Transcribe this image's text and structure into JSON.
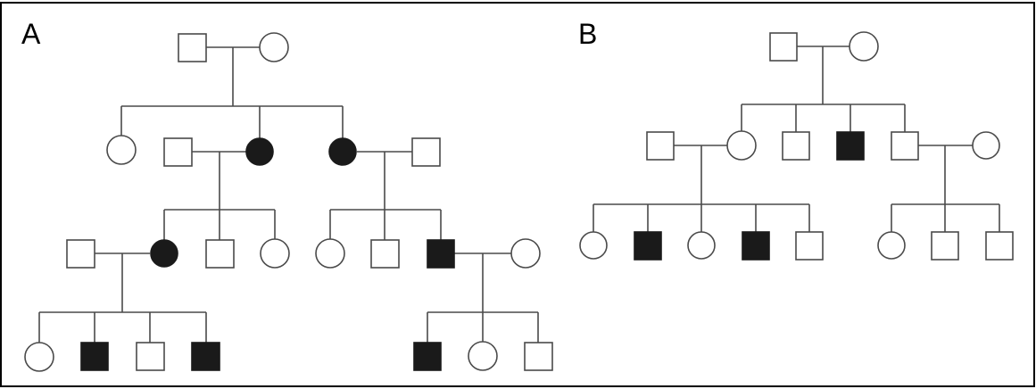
{
  "figure": {
    "panels": [
      {
        "label": "A",
        "generations": [
          [
            {
              "id": "A-I-1",
              "sex": "male",
              "affected": false
            },
            {
              "id": "A-I-2",
              "sex": "female",
              "affected": false
            }
          ],
          [
            {
              "id": "A-II-1",
              "sex": "female",
              "affected": false
            },
            {
              "id": "A-II-2",
              "sex": "male",
              "affected": false,
              "spouse": true
            },
            {
              "id": "A-II-3",
              "sex": "female",
              "affected": true
            },
            {
              "id": "A-II-4",
              "sex": "female",
              "affected": true
            },
            {
              "id": "A-II-5",
              "sex": "male",
              "affected": false,
              "spouse": true
            }
          ],
          [
            {
              "id": "A-III-1",
              "sex": "male",
              "affected": false,
              "spouse": true
            },
            {
              "id": "A-III-2",
              "sex": "female",
              "affected": true
            },
            {
              "id": "A-III-3",
              "sex": "male",
              "affected": false
            },
            {
              "id": "A-III-4",
              "sex": "female",
              "affected": false
            },
            {
              "id": "A-III-5",
              "sex": "female",
              "affected": false
            },
            {
              "id": "A-III-6",
              "sex": "male",
              "affected": false
            },
            {
              "id": "A-III-7",
              "sex": "male",
              "affected": true
            },
            {
              "id": "A-III-8",
              "sex": "female",
              "affected": false,
              "spouse": true
            }
          ],
          [
            {
              "id": "A-IV-1",
              "sex": "female",
              "affected": false
            },
            {
              "id": "A-IV-2",
              "sex": "male",
              "affected": true
            },
            {
              "id": "A-IV-3",
              "sex": "male",
              "affected": false
            },
            {
              "id": "A-IV-4",
              "sex": "male",
              "affected": true
            },
            {
              "id": "A-IV-5",
              "sex": "male",
              "affected": true
            },
            {
              "id": "A-IV-6",
              "sex": "female",
              "affected": false
            },
            {
              "id": "A-IV-7",
              "sex": "male",
              "affected": false
            }
          ]
        ]
      },
      {
        "label": "B",
        "generations": [
          [
            {
              "id": "B-I-1",
              "sex": "male",
              "affected": false
            },
            {
              "id": "B-I-2",
              "sex": "female",
              "affected": false
            }
          ],
          [
            {
              "id": "B-II-1",
              "sex": "male",
              "affected": false,
              "spouse": true
            },
            {
              "id": "B-II-2",
              "sex": "female",
              "affected": false
            },
            {
              "id": "B-II-3",
              "sex": "male",
              "affected": false
            },
            {
              "id": "B-II-4",
              "sex": "male",
              "affected": true
            },
            {
              "id": "B-II-5",
              "sex": "male",
              "affected": false
            },
            {
              "id": "B-II-6",
              "sex": "female",
              "affected": false,
              "spouse": true
            }
          ],
          [
            {
              "id": "B-III-1",
              "sex": "female",
              "affected": false
            },
            {
              "id": "B-III-2",
              "sex": "male",
              "affected": true
            },
            {
              "id": "B-III-3",
              "sex": "female",
              "affected": false
            },
            {
              "id": "B-III-4",
              "sex": "male",
              "affected": true
            },
            {
              "id": "B-III-5",
              "sex": "male",
              "affected": false
            },
            {
              "id": "B-III-6",
              "sex": "female",
              "affected": false
            },
            {
              "id": "B-III-7",
              "sex": "male",
              "affected": false
            },
            {
              "id": "B-III-8",
              "sex": "male",
              "affected": false
            }
          ]
        ]
      }
    ],
    "colors": {
      "affected_fill": "#1a1a1a",
      "unaffected_fill": "#ffffff",
      "line": "#4a4a4a",
      "border": "#000000"
    }
  }
}
